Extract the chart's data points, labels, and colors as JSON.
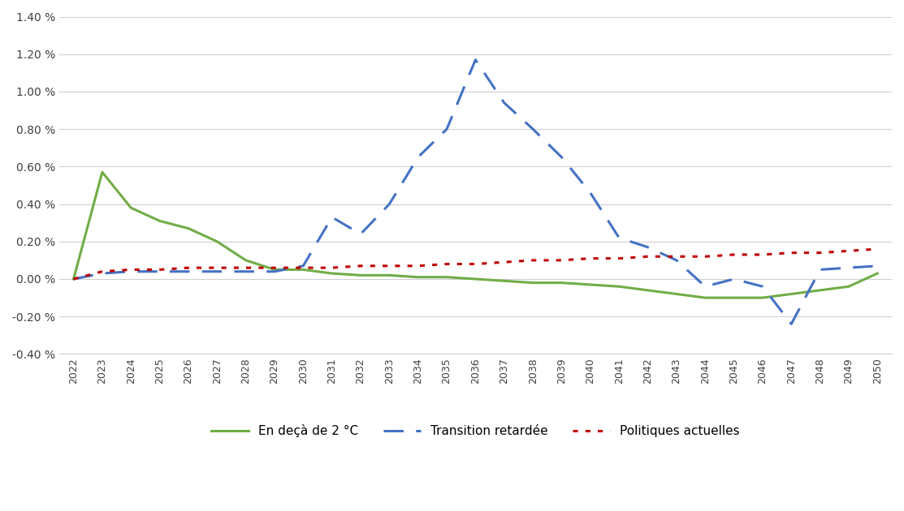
{
  "years": [
    2022,
    2023,
    2024,
    2025,
    2026,
    2027,
    2028,
    2029,
    2030,
    2031,
    2032,
    2033,
    2034,
    2035,
    2036,
    2037,
    2038,
    2039,
    2040,
    2041,
    2042,
    2043,
    2044,
    2045,
    2046,
    2047,
    2048,
    2049,
    2050
  ],
  "en_deca": [
    0.0,
    0.57,
    0.38,
    0.31,
    0.27,
    0.2,
    0.1,
    0.05,
    0.05,
    0.03,
    0.02,
    0.02,
    0.01,
    0.01,
    0.0,
    -0.01,
    -0.02,
    -0.02,
    -0.03,
    -0.04,
    -0.06,
    -0.08,
    -0.1,
    -0.1,
    -0.1,
    -0.08,
    -0.06,
    -0.04,
    0.03
  ],
  "transition": [
    0.0,
    0.03,
    0.04,
    0.04,
    0.04,
    0.04,
    0.04,
    0.04,
    0.07,
    0.33,
    0.24,
    0.4,
    0.65,
    0.8,
    1.17,
    0.94,
    0.8,
    0.65,
    0.46,
    0.22,
    0.17,
    0.1,
    -0.04,
    0.0,
    -0.04,
    -0.24,
    0.05,
    0.06,
    0.07
  ],
  "politiques": [
    0.0,
    0.04,
    0.05,
    0.05,
    0.06,
    0.06,
    0.06,
    0.06,
    0.06,
    0.06,
    0.07,
    0.07,
    0.07,
    0.08,
    0.08,
    0.09,
    0.1,
    0.1,
    0.11,
    0.11,
    0.12,
    0.12,
    0.12,
    0.13,
    0.13,
    0.14,
    0.14,
    0.15,
    0.16
  ],
  "ylim": [
    -0.4,
    1.4
  ],
  "yticks": [
    -0.4,
    -0.2,
    0.0,
    0.2,
    0.4,
    0.6,
    0.8,
    1.0,
    1.2,
    1.4
  ],
  "color_en_deca": "#70ad47",
  "color_transition": "#4472c4",
  "color_politiques": "#c00000",
  "legend_en_deca": "En deçà de 2 °C",
  "legend_transition": "Transition retardée",
  "legend_politiques": "Politiques actuelles",
  "background_color": "#ffffff",
  "grid_color": "#d0d0d0"
}
